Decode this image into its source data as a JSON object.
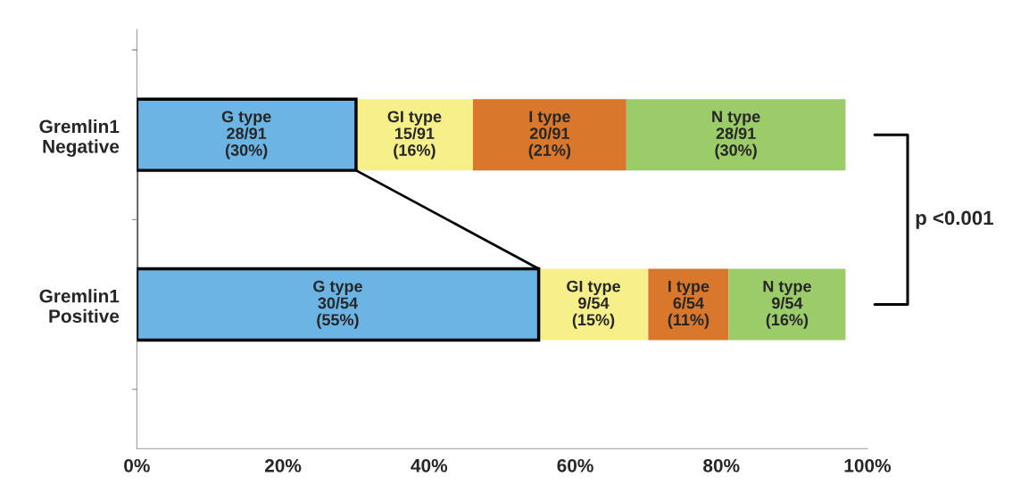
{
  "chart_data": {
    "type": "bar",
    "orientation": "horizontal",
    "stacked": true,
    "categories": [
      "Gremlin1\nNegative",
      "Gremlin1\nPositive"
    ],
    "series": [
      {
        "name": "G type",
        "color": "#6cb4e4",
        "values": [
          30,
          55
        ],
        "value_labels": [
          "28/91\n(30%)",
          "30/54\n(55%)"
        ]
      },
      {
        "name": "GI type",
        "color": "#f7f08a",
        "values": [
          16,
          15
        ],
        "value_labels": [
          "15/91\n(16%)",
          "9/54\n(15%)"
        ]
      },
      {
        "name": "I type",
        "color": "#d9782d",
        "values": [
          21,
          11
        ],
        "value_labels": [
          "20/91\n(21%)",
          "6/54\n(11%)"
        ]
      },
      {
        "name": "N type",
        "color": "#9ccb6a",
        "values": [
          30,
          16
        ],
        "value_labels": [
          "28/91\n(30%)",
          "9/54\n(16%)"
        ]
      }
    ],
    "xlim": [
      0,
      100
    ],
    "xticks": [
      {
        "value": 0,
        "label": "0%"
      },
      {
        "value": 20,
        "label": "20%"
      },
      {
        "value": 40,
        "label": "40%"
      },
      {
        "value": 60,
        "label": "60%"
      },
      {
        "value": 80,
        "label": "80%"
      },
      {
        "value": 100,
        "label": "100%"
      }
    ],
    "annotations": [
      "p <0.001"
    ],
    "grid": false,
    "legend": false
  }
}
